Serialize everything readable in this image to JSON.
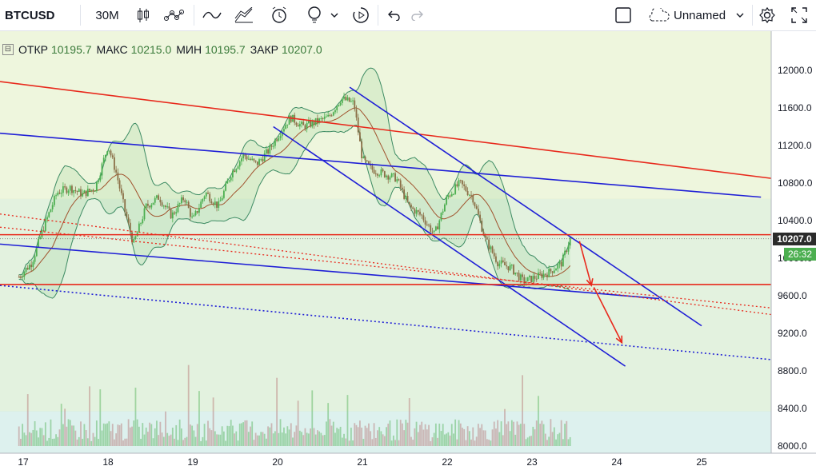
{
  "toolbar": {
    "symbol": "BTCUSD",
    "interval": "30M",
    "layout_name": "Unnamed",
    "icons": [
      "candles-icon",
      "indicators-icon",
      "compare-icon",
      "chart-style-icon",
      "alert-icon",
      "idea-icon",
      "chevron-down-icon",
      "replay-icon",
      "undo-icon",
      "redo-icon",
      "layout-square-icon",
      "cloud-icon",
      "settings-icon",
      "fullscreen-icon"
    ]
  },
  "ohlc": {
    "open_label": "ОТКР",
    "open": "10195.7",
    "high_label": "МАКС",
    "high": "10215.0",
    "low_label": "МИН",
    "low": "10195.7",
    "close_label": "ЗАКР",
    "close": "10207.0"
  },
  "price_scale": {
    "labels": [
      "12000.0",
      "11600.0",
      "11200.0",
      "10800.0",
      "10400.0",
      "10000.0",
      "9600.0",
      "9200.0",
      "8800.0",
      "8400.0",
      "8000.0"
    ],
    "current_price": "10207.0",
    "countdown": "26:32"
  },
  "time_scale": {
    "labels": [
      "17",
      "18",
      "19",
      "20",
      "21",
      "22",
      "23",
      "24",
      "25"
    ]
  },
  "colors": {
    "up": "#4caf50",
    "down": "#8b6f47",
    "trend_blue": "#1f1fd6",
    "trend_red": "#e8291c",
    "price_tag": "#2b2b2b",
    "timer_tag": "#4caf50"
  },
  "chart_data": {
    "type": "candlestick",
    "symbol": "BTCUSD",
    "interval": "30M",
    "y_range": [
      7900,
      12300
    ],
    "x_labels": [
      "17",
      "18",
      "19",
      "20",
      "21",
      "22",
      "23",
      "24",
      "25"
    ],
    "close_path": [
      [
        16.95,
        9800
      ],
      [
        17.1,
        9950
      ],
      [
        17.25,
        10350
      ],
      [
        17.4,
        10700
      ],
      [
        17.55,
        10750
      ],
      [
        17.7,
        10680
      ],
      [
        17.85,
        10750
      ],
      [
        18.0,
        11200
      ],
      [
        18.1,
        10900
      ],
      [
        18.2,
        10500
      ],
      [
        18.3,
        10150
      ],
      [
        18.45,
        10550
      ],
      [
        18.6,
        10650
      ],
      [
        18.75,
        10450
      ],
      [
        18.9,
        10650
      ],
      [
        19.0,
        10400
      ],
      [
        19.15,
        10700
      ],
      [
        19.3,
        10550
      ],
      [
        19.45,
        10900
      ],
      [
        19.6,
        11100
      ],
      [
        19.75,
        11000
      ],
      [
        19.9,
        11150
      ],
      [
        20.0,
        11300
      ],
      [
        20.15,
        11500
      ],
      [
        20.3,
        11400
      ],
      [
        20.45,
        11450
      ],
      [
        20.6,
        11500
      ],
      [
        20.75,
        11700
      ],
      [
        20.9,
        11650
      ],
      [
        21.0,
        11050
      ],
      [
        21.1,
        10950
      ],
      [
        21.25,
        10900
      ],
      [
        21.4,
        10850
      ],
      [
        21.55,
        10550
      ],
      [
        21.7,
        10450
      ],
      [
        21.85,
        10250
      ],
      [
        22.0,
        10650
      ],
      [
        22.15,
        10800
      ],
      [
        22.3,
        10650
      ],
      [
        22.45,
        10200
      ],
      [
        22.6,
        9950
      ],
      [
        22.75,
        9900
      ],
      [
        22.9,
        9750
      ],
      [
        23.05,
        9800
      ],
      [
        23.2,
        9850
      ],
      [
        23.35,
        9950
      ],
      [
        23.45,
        10210
      ]
    ],
    "horizontal_levels": [
      10250,
      9720
    ],
    "green_levels": [
      10630,
      8370
    ]
  }
}
